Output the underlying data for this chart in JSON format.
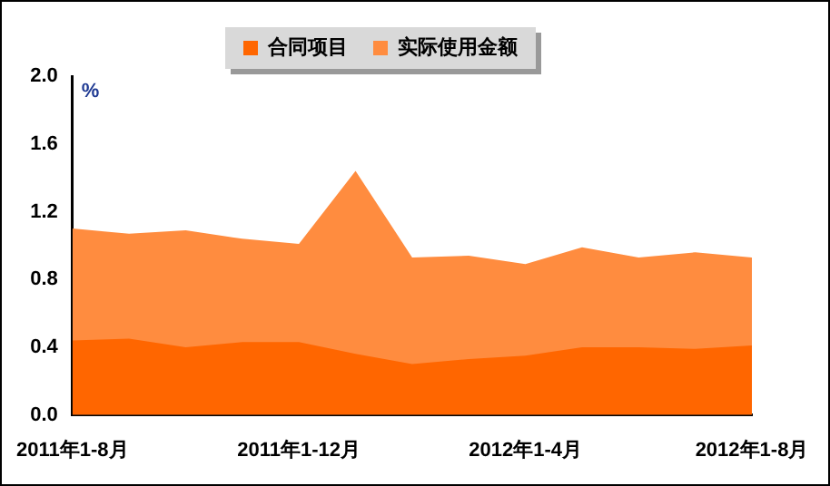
{
  "chart_data": {
    "type": "area",
    "ylabel": "%",
    "categories": [
      "2011年1-8月",
      null,
      null,
      null,
      "2011年1-12月",
      null,
      null,
      null,
      "2012年1-4月",
      null,
      null,
      null,
      "2012年1-8月"
    ],
    "series": [
      {
        "name": "合同项目",
        "color": "#ff6600",
        "values": [
          0.44,
          0.45,
          0.4,
          0.43,
          0.43,
          0.36,
          0.3,
          0.33,
          0.35,
          0.4,
          0.4,
          0.39,
          0.41
        ]
      },
      {
        "name": "实际使用金额",
        "color": "#ff8c3f",
        "values": [
          1.1,
          1.07,
          1.09,
          1.04,
          1.01,
          1.44,
          0.93,
          0.94,
          0.89,
          0.99,
          0.93,
          0.96,
          0.93
        ]
      }
    ],
    "ylim": [
      0,
      2
    ],
    "yticks": [
      {
        "value": 0,
        "label": "0.0"
      },
      0.4,
      0.8,
      1.2,
      1.6,
      {
        "value": 2,
        "label": "2.0"
      }
    ],
    "grid": false,
    "legend": "top"
  }
}
